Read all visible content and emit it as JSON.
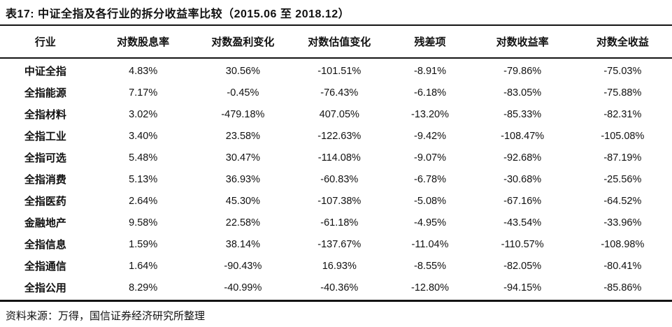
{
  "title": "表17: 中证全指及各行业的拆分收益率比较（2015.06 至 2018.12）",
  "source_note": "资料来源：万得，国信证券经济研究所整理",
  "table": {
    "columns": [
      "行业",
      "对数股息率",
      "对数盈利变化",
      "对数估值变化",
      "残差项",
      "对数收益率",
      "对数全收益"
    ],
    "column_widths_percent": [
      13.5,
      15.6,
      14.1,
      14.6,
      12.4,
      15.1,
      14.7
    ],
    "rows": [
      [
        "中证全指",
        "4.83%",
        "30.56%",
        "-101.51%",
        "-8.91%",
        "-79.86%",
        "-75.03%"
      ],
      [
        "全指能源",
        "7.17%",
        "-0.45%",
        "-76.43%",
        "-6.18%",
        "-83.05%",
        "-75.88%"
      ],
      [
        "全指材料",
        "3.02%",
        "-479.18%",
        "407.05%",
        "-13.20%",
        "-85.33%",
        "-82.31%"
      ],
      [
        "全指工业",
        "3.40%",
        "23.58%",
        "-122.63%",
        "-9.42%",
        "-108.47%",
        "-105.08%"
      ],
      [
        "全指可选",
        "5.48%",
        "30.47%",
        "-114.08%",
        "-9.07%",
        "-92.68%",
        "-87.19%"
      ],
      [
        "全指消费",
        "5.13%",
        "36.93%",
        "-60.83%",
        "-6.78%",
        "-30.68%",
        "-25.56%"
      ],
      [
        "全指医药",
        "2.64%",
        "45.30%",
        "-107.38%",
        "-5.08%",
        "-67.16%",
        "-64.52%"
      ],
      [
        "金融地产",
        "9.58%",
        "22.58%",
        "-61.18%",
        "-4.95%",
        "-43.54%",
        "-33.96%"
      ],
      [
        "全指信息",
        "1.59%",
        "38.14%",
        "-137.67%",
        "-11.04%",
        "-110.57%",
        "-108.98%"
      ],
      [
        "全指通信",
        "1.64%",
        "-90.43%",
        "16.93%",
        "-8.55%",
        "-82.05%",
        "-80.41%"
      ],
      [
        "全指公用",
        "8.29%",
        "-40.99%",
        "-40.36%",
        "-12.80%",
        "-94.15%",
        "-85.86%"
      ]
    ]
  },
  "colors": {
    "text": "#111111",
    "rule": "#141414",
    "background": "#ffffff"
  }
}
